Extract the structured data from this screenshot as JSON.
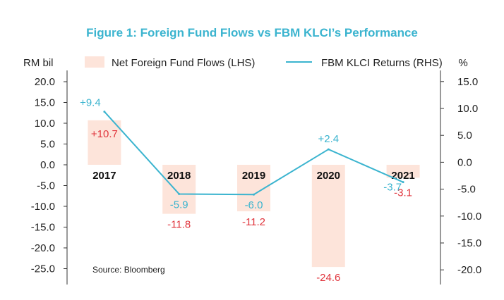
{
  "chart_data": {
    "type": "bar",
    "title": "Figure 1: Foreign Fund Flows vs FBM KLCI’s Performance",
    "source": "Source: Bloomberg",
    "categories": [
      "2017",
      "2018",
      "2019",
      "2020",
      "2021"
    ],
    "y_left": {
      "label": "RM bil",
      "ylim": [
        -30,
        22
      ],
      "ticks": [
        "20.0",
        "15.0",
        "10.0",
        "5.0",
        "0.0",
        "-5.0",
        "-10.0",
        "-15.0",
        "-20.0",
        "-25.0"
      ]
    },
    "y_right": {
      "label": "%",
      "ylim": [
        -24,
        15
      ],
      "ticks": [
        "15.0",
        "10.0",
        "5.0",
        "0.0",
        "-5.0",
        "-10.0",
        "-15.0",
        "-20.0"
      ]
    },
    "series": [
      {
        "name": "Net Foreign Fund Flows (LHS)",
        "type": "bar",
        "axis": "left",
        "values": [
          10.7,
          -11.8,
          -11.2,
          -24.6,
          -3.1
        ],
        "labels": [
          "+10.7",
          "-11.8",
          "-11.2",
          "-24.6",
          "-3.1"
        ]
      },
      {
        "name": "FBM KLCI Returns (RHS)",
        "type": "line",
        "axis": "right",
        "values": [
          9.4,
          -5.9,
          -6.0,
          2.4,
          -3.7
        ],
        "labels": [
          "+9.4",
          "-5.9",
          "-6.0",
          "+2.4",
          "-3.7"
        ]
      }
    ],
    "colors": {
      "title": "#3bb4cf",
      "bar": "#fde4da",
      "line": "#3bb4cf",
      "bar_label": "#e0343c",
      "line_label": "#3bb4cf",
      "axis": "#333333"
    },
    "legend_placement": "top",
    "grid": false
  }
}
